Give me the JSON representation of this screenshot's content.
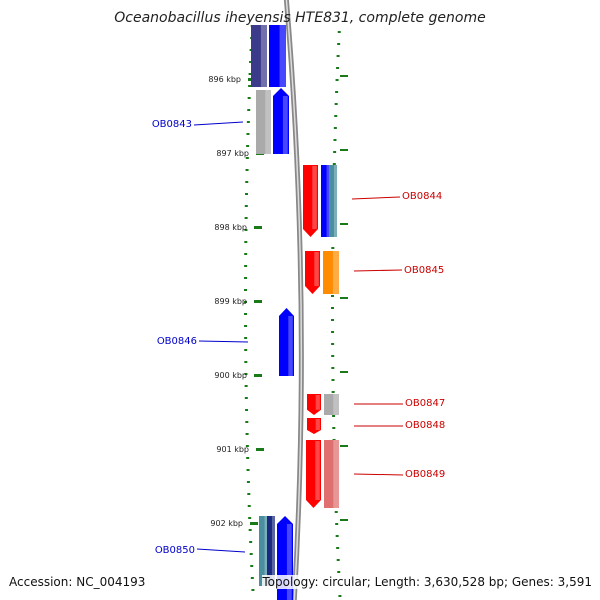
{
  "title": "Oceanobacillus iheyensis HTE831, complete genome",
  "accession_text": "Accession: NC_004193",
  "info_text": "Topology: circular; Length: 3,630,528 bp; Genes: 3,591",
  "ruler_labels": [
    "896 kbp",
    "897 kbp",
    "898 kbp",
    "899 kbp",
    "900 kbp",
    "901 kbp",
    "902 kbp"
  ],
  "genes": [
    {
      "label": "OB0843",
      "strand": "reverse",
      "color": "#0000cc"
    },
    {
      "label": "OB0844",
      "strand": "forward",
      "color": "#cc0000"
    },
    {
      "label": "OB0845",
      "strand": "forward",
      "color": "#cc0000"
    },
    {
      "label": "OB0846",
      "strand": "reverse",
      "color": "#0000cc"
    },
    {
      "label": "OB0847",
      "strand": "forward",
      "color": "#cc0000"
    },
    {
      "label": "OB0848",
      "strand": "forward",
      "color": "#cc0000"
    },
    {
      "label": "OB0849",
      "strand": "forward",
      "color": "#cc0000"
    },
    {
      "label": "OB0850",
      "strand": "reverse",
      "color": "#0000cc"
    }
  ],
  "colors": {
    "reverse_cds": "#0000ff",
    "forward_cds": "#ff0000",
    "backbone": "#888888",
    "tick": "#1a7a1a",
    "cog_purple": "#3c3a8a",
    "cog_gray": "#aaaaaa",
    "cog_orange": "#ff8c00",
    "cog_teal": "#4a8fa0",
    "cog_pink": "#e07070"
  }
}
